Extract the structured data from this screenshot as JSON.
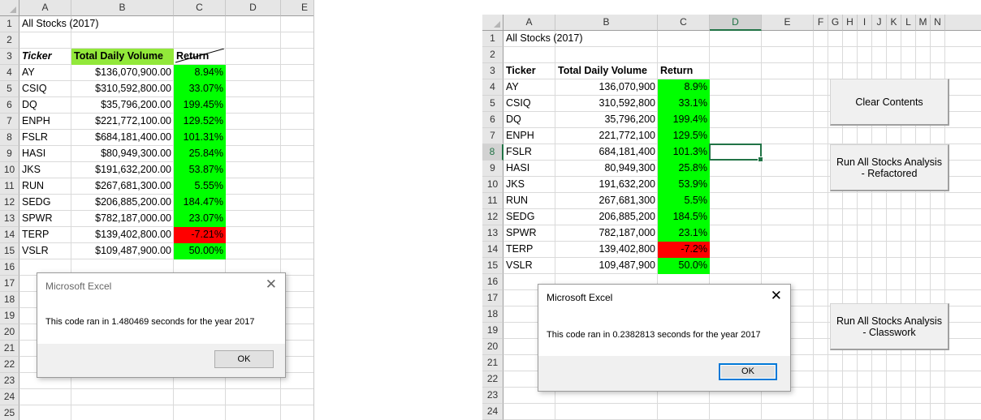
{
  "left": {
    "columns": [
      "A",
      "B",
      "C",
      "D",
      "E"
    ],
    "rows": [
      "1",
      "2",
      "3",
      "4",
      "5",
      "6",
      "7",
      "8",
      "9",
      "10",
      "11",
      "12",
      "13",
      "14",
      "15",
      "16",
      "17",
      "18",
      "19",
      "20",
      "21",
      "22",
      "23",
      "24",
      "25"
    ],
    "title": "All Stocks (2017)",
    "headers": {
      "ticker": "Ticker",
      "volume": "Total Daily Volume",
      "return": "Return"
    },
    "data": [
      {
        "ticker": "AY",
        "volume": "$136,070,900.00",
        "return": "8.94%",
        "status": "positive"
      },
      {
        "ticker": "CSIQ",
        "volume": "$310,592,800.00",
        "return": "33.07%",
        "status": "positive"
      },
      {
        "ticker": "DQ",
        "volume": "$35,796,200.00",
        "return": "199.45%",
        "status": "positive"
      },
      {
        "ticker": "ENPH",
        "volume": "$221,772,100.00",
        "return": "129.52%",
        "status": "positive"
      },
      {
        "ticker": "FSLR",
        "volume": "$684,181,400.00",
        "return": "101.31%",
        "status": "positive"
      },
      {
        "ticker": "HASI",
        "volume": "$80,949,300.00",
        "return": "25.84%",
        "status": "positive"
      },
      {
        "ticker": "JKS",
        "volume": "$191,632,200.00",
        "return": "53.87%",
        "status": "positive"
      },
      {
        "ticker": "RUN",
        "volume": "$267,681,300.00",
        "return": "5.55%",
        "status": "positive"
      },
      {
        "ticker": "SEDG",
        "volume": "$206,885,200.00",
        "return": "184.47%",
        "status": "positive"
      },
      {
        "ticker": "SPWR",
        "volume": "$782,187,000.00",
        "return": "23.07%",
        "status": "positive"
      },
      {
        "ticker": "TERP",
        "volume": "$139,402,800.00",
        "return": "-7.21%",
        "status": "negative"
      },
      {
        "ticker": "VSLR",
        "volume": "$109,487,900.00",
        "return": "50.00%",
        "status": "positive"
      }
    ],
    "dialog": {
      "title": "Microsoft Excel",
      "message": "This code ran in 1.480469 seconds for the year 2017",
      "ok": "OK",
      "close": "✕"
    }
  },
  "right": {
    "columns": [
      "A",
      "B",
      "C",
      "D",
      "E",
      "F",
      "G",
      "H",
      "I",
      "J",
      "K",
      "L",
      "M",
      "N"
    ],
    "rows": [
      "1",
      "2",
      "3",
      "4",
      "5",
      "6",
      "7",
      "8",
      "9",
      "10",
      "11",
      "12",
      "13",
      "14",
      "15",
      "16",
      "17",
      "18",
      "19",
      "20",
      "21",
      "22",
      "23",
      "24"
    ],
    "title": "All Stocks (2017)",
    "headers": {
      "ticker": "Ticker",
      "volume": "Total Daily Volume",
      "return": "Return"
    },
    "data": [
      {
        "ticker": "AY",
        "volume": "136,070,900",
        "return": "8.9%",
        "status": "positive"
      },
      {
        "ticker": "CSIQ",
        "volume": "310,592,800",
        "return": "33.1%",
        "status": "positive"
      },
      {
        "ticker": "DQ",
        "volume": "35,796,200",
        "return": "199.4%",
        "status": "positive"
      },
      {
        "ticker": "ENPH",
        "volume": "221,772,100",
        "return": "129.5%",
        "status": "positive"
      },
      {
        "ticker": "FSLR",
        "volume": "684,181,400",
        "return": "101.3%",
        "status": "positive"
      },
      {
        "ticker": "HASI",
        "volume": "80,949,300",
        "return": "25.8%",
        "status": "positive"
      },
      {
        "ticker": "JKS",
        "volume": "191,632,200",
        "return": "53.9%",
        "status": "positive"
      },
      {
        "ticker": "RUN",
        "volume": "267,681,300",
        "return": "5.5%",
        "status": "positive"
      },
      {
        "ticker": "SEDG",
        "volume": "206,885,200",
        "return": "184.5%",
        "status": "positive"
      },
      {
        "ticker": "SPWR",
        "volume": "782,187,000",
        "return": "23.1%",
        "status": "positive"
      },
      {
        "ticker": "TERP",
        "volume": "139,402,800",
        "return": "-7.2%",
        "status": "negative"
      },
      {
        "ticker": "VSLR",
        "volume": "109,487,900",
        "return": "50.0%",
        "status": "positive"
      }
    ],
    "selected_cell": "D8",
    "buttons": {
      "clear": "Clear Contents",
      "refactored_line1": "Run All Stocks Analysis",
      "refactored_line2": "- Refactored",
      "classwork_line1": "Run All Stocks Analysis",
      "classwork_line2": "- Classwork"
    },
    "dialog": {
      "title": "Microsoft Excel",
      "message": "This code ran in 0.2382813 seconds for the year 2017",
      "ok": "OK",
      "close": "✕"
    }
  },
  "colors": {
    "positive": "#00ff00",
    "negative": "#ff0000",
    "header_highlight": "#92e83a",
    "selection": "#217346"
  }
}
